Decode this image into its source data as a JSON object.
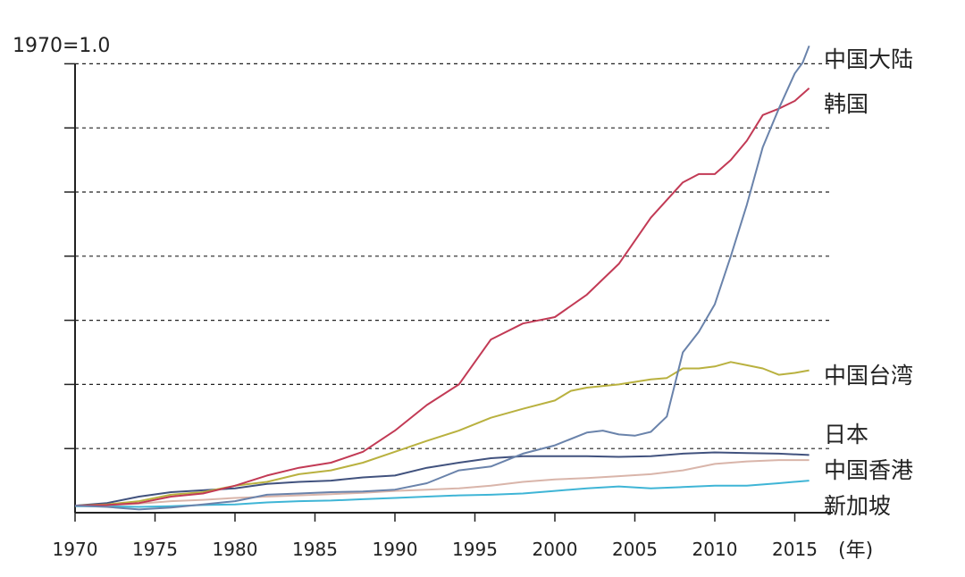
{
  "chart_data": {
    "type": "line",
    "title": "",
    "y_unit_label": "1970=1.0",
    "xlabel": "(年)",
    "ylabel": "",
    "xlim": [
      1970,
      2017
    ],
    "ylim": [
      0,
      7
    ],
    "x_ticks": [
      "1970",
      "1975",
      "1980",
      "1985",
      "1990",
      "1995",
      "2000",
      "2005",
      "2010",
      "2015"
    ],
    "x_tick_values": [
      1970,
      1975,
      1980,
      1985,
      1990,
      1995,
      2000,
      2005,
      2010,
      2015
    ],
    "y_gridlines": [
      1,
      2,
      3,
      4,
      5,
      6,
      7
    ],
    "grid": "horizontal dashed",
    "series": [
      {
        "name": "中国大陆",
        "color": "#6a83ab",
        "points": [
          [
            1970,
            0.11
          ],
          [
            1972,
            0.09
          ],
          [
            1974,
            0.05
          ],
          [
            1976,
            0.08
          ],
          [
            1978,
            0.13
          ],
          [
            1980,
            0.18
          ],
          [
            1982,
            0.28
          ],
          [
            1984,
            0.3
          ],
          [
            1986,
            0.32
          ],
          [
            1988,
            0.33
          ],
          [
            1990,
            0.36
          ],
          [
            1992,
            0.46
          ],
          [
            1994,
            0.66
          ],
          [
            1996,
            0.72
          ],
          [
            1998,
            0.92
          ],
          [
            2000,
            1.05
          ],
          [
            2002,
            1.25
          ],
          [
            2003,
            1.28
          ],
          [
            2004,
            1.22
          ],
          [
            2005,
            1.2
          ],
          [
            2006,
            1.26
          ],
          [
            2007,
            1.5
          ],
          [
            2008,
            2.5
          ],
          [
            2009,
            2.82
          ],
          [
            2010,
            3.25
          ],
          [
            2011,
            4.0
          ],
          [
            2012,
            4.8
          ],
          [
            2013,
            5.7
          ],
          [
            2014,
            6.3
          ],
          [
            2015,
            6.85
          ],
          [
            2015.5,
            7.02
          ],
          [
            2015.9,
            7.28
          ]
        ]
      },
      {
        "name": "韩国",
        "color": "#c23a55",
        "points": [
          [
            1970,
            0.11
          ],
          [
            1972,
            0.12
          ],
          [
            1974,
            0.15
          ],
          [
            1976,
            0.25
          ],
          [
            1978,
            0.3
          ],
          [
            1980,
            0.42
          ],
          [
            1982,
            0.58
          ],
          [
            1984,
            0.7
          ],
          [
            1986,
            0.78
          ],
          [
            1988,
            0.95
          ],
          [
            1990,
            1.28
          ],
          [
            1992,
            1.68
          ],
          [
            1994,
            2.0
          ],
          [
            1996,
            2.7
          ],
          [
            1998,
            2.95
          ],
          [
            2000,
            3.05
          ],
          [
            2002,
            3.4
          ],
          [
            2004,
            3.88
          ],
          [
            2006,
            4.6
          ],
          [
            2008,
            5.15
          ],
          [
            2009,
            5.28
          ],
          [
            2010,
            5.28
          ],
          [
            2011,
            5.5
          ],
          [
            2012,
            5.8
          ],
          [
            2013,
            6.2
          ],
          [
            2014,
            6.3
          ],
          [
            2015,
            6.42
          ],
          [
            2015.9,
            6.62
          ]
        ]
      },
      {
        "name": "中国台湾",
        "color": "#b9b13f",
        "points": [
          [
            1970,
            0.11
          ],
          [
            1972,
            0.13
          ],
          [
            1974,
            0.18
          ],
          [
            1976,
            0.28
          ],
          [
            1978,
            0.32
          ],
          [
            1980,
            0.42
          ],
          [
            1982,
            0.48
          ],
          [
            1984,
            0.6
          ],
          [
            1986,
            0.66
          ],
          [
            1988,
            0.78
          ],
          [
            1990,
            0.95
          ],
          [
            1992,
            1.12
          ],
          [
            1994,
            1.28
          ],
          [
            1996,
            1.48
          ],
          [
            1998,
            1.62
          ],
          [
            2000,
            1.75
          ],
          [
            2001,
            1.9
          ],
          [
            2002,
            1.95
          ],
          [
            2004,
            2.0
          ],
          [
            2006,
            2.08
          ],
          [
            2007,
            2.1
          ],
          [
            2008,
            2.25
          ],
          [
            2009,
            2.25
          ],
          [
            2010,
            2.28
          ],
          [
            2011,
            2.35
          ],
          [
            2012,
            2.3
          ],
          [
            2013,
            2.25
          ],
          [
            2014,
            2.15
          ],
          [
            2015,
            2.18
          ],
          [
            2015.9,
            2.22
          ]
        ]
      },
      {
        "name": "日本",
        "color": "#41527e",
        "points": [
          [
            1970,
            0.11
          ],
          [
            1972,
            0.15
          ],
          [
            1974,
            0.25
          ],
          [
            1976,
            0.32
          ],
          [
            1978,
            0.35
          ],
          [
            1980,
            0.38
          ],
          [
            1982,
            0.45
          ],
          [
            1984,
            0.48
          ],
          [
            1986,
            0.5
          ],
          [
            1988,
            0.55
          ],
          [
            1990,
            0.58
          ],
          [
            1992,
            0.7
          ],
          [
            1994,
            0.78
          ],
          [
            1996,
            0.85
          ],
          [
            1998,
            0.88
          ],
          [
            2000,
            0.88
          ],
          [
            2002,
            0.88
          ],
          [
            2004,
            0.87
          ],
          [
            2006,
            0.88
          ],
          [
            2008,
            0.92
          ],
          [
            2010,
            0.94
          ],
          [
            2012,
            0.93
          ],
          [
            2014,
            0.92
          ],
          [
            2015.9,
            0.9
          ]
        ]
      },
      {
        "name": "中国香港",
        "color": "#d9b5aa",
        "points": [
          [
            1970,
            0.11
          ],
          [
            1972,
            0.12
          ],
          [
            1974,
            0.14
          ],
          [
            1976,
            0.18
          ],
          [
            1978,
            0.2
          ],
          [
            1980,
            0.23
          ],
          [
            1982,
            0.25
          ],
          [
            1984,
            0.27
          ],
          [
            1986,
            0.29
          ],
          [
            1988,
            0.31
          ],
          [
            1990,
            0.34
          ],
          [
            1992,
            0.36
          ],
          [
            1994,
            0.38
          ],
          [
            1996,
            0.42
          ],
          [
            1998,
            0.48
          ],
          [
            2000,
            0.52
          ],
          [
            2002,
            0.54
          ],
          [
            2004,
            0.57
          ],
          [
            2006,
            0.6
          ],
          [
            2008,
            0.66
          ],
          [
            2010,
            0.76
          ],
          [
            2012,
            0.8
          ],
          [
            2014,
            0.82
          ],
          [
            2015.9,
            0.82
          ]
        ]
      },
      {
        "name": "新加坡",
        "color": "#3fb5d6",
        "points": [
          [
            1970,
            0.1
          ],
          [
            1972,
            0.1
          ],
          [
            1974,
            0.09
          ],
          [
            1976,
            0.1
          ],
          [
            1978,
            0.12
          ],
          [
            1980,
            0.13
          ],
          [
            1982,
            0.16
          ],
          [
            1984,
            0.18
          ],
          [
            1986,
            0.19
          ],
          [
            1988,
            0.21
          ],
          [
            1990,
            0.23
          ],
          [
            1992,
            0.25
          ],
          [
            1994,
            0.27
          ],
          [
            1996,
            0.28
          ],
          [
            1998,
            0.3
          ],
          [
            2000,
            0.34
          ],
          [
            2002,
            0.38
          ],
          [
            2004,
            0.41
          ],
          [
            2006,
            0.38
          ],
          [
            2008,
            0.4
          ],
          [
            2010,
            0.42
          ],
          [
            2012,
            0.42
          ],
          [
            2014,
            0.46
          ],
          [
            2015.9,
            0.5
          ]
        ]
      }
    ]
  }
}
